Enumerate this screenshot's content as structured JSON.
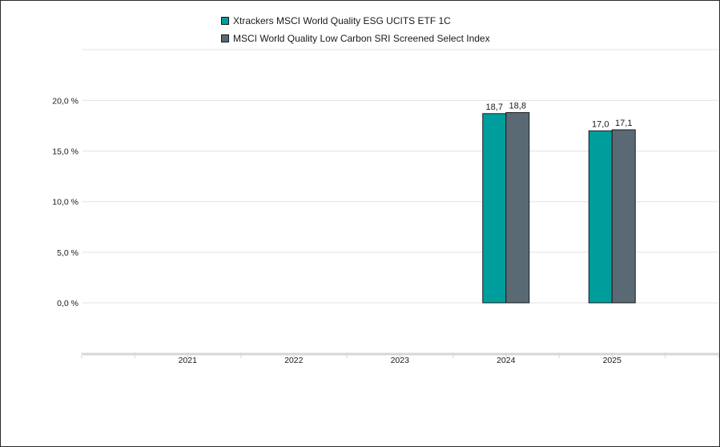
{
  "chart_data": {
    "type": "bar",
    "categories": [
      "2021",
      "2022",
      "2023",
      "2024",
      "2025"
    ],
    "series": [
      {
        "name": "Xtrackers MSCI World Quality ESG UCITS ETF 1C",
        "color": "#009d9d",
        "values": [
          null,
          null,
          null,
          18.7,
          17.0
        ],
        "labels": [
          "",
          "",
          "",
          "18,7",
          "17,0"
        ]
      },
      {
        "name": "MSCI World Quality Low Carbon SRI Screened Select Index",
        "color": "#596a74",
        "values": [
          null,
          null,
          null,
          18.8,
          17.1
        ],
        "labels": [
          "",
          "",
          "",
          "18,8",
          "17,1"
        ]
      }
    ],
    "y_ticks": [
      0,
      5,
      10,
      15,
      20
    ],
    "y_tick_labels": [
      "0,0 %",
      "5,0 %",
      "10,0 %",
      "15,0 %",
      "20,0 %"
    ],
    "ylim": [
      -5,
      25
    ],
    "grid": true,
    "legend_position": "top-center",
    "xlabel": "",
    "ylabel": ""
  }
}
